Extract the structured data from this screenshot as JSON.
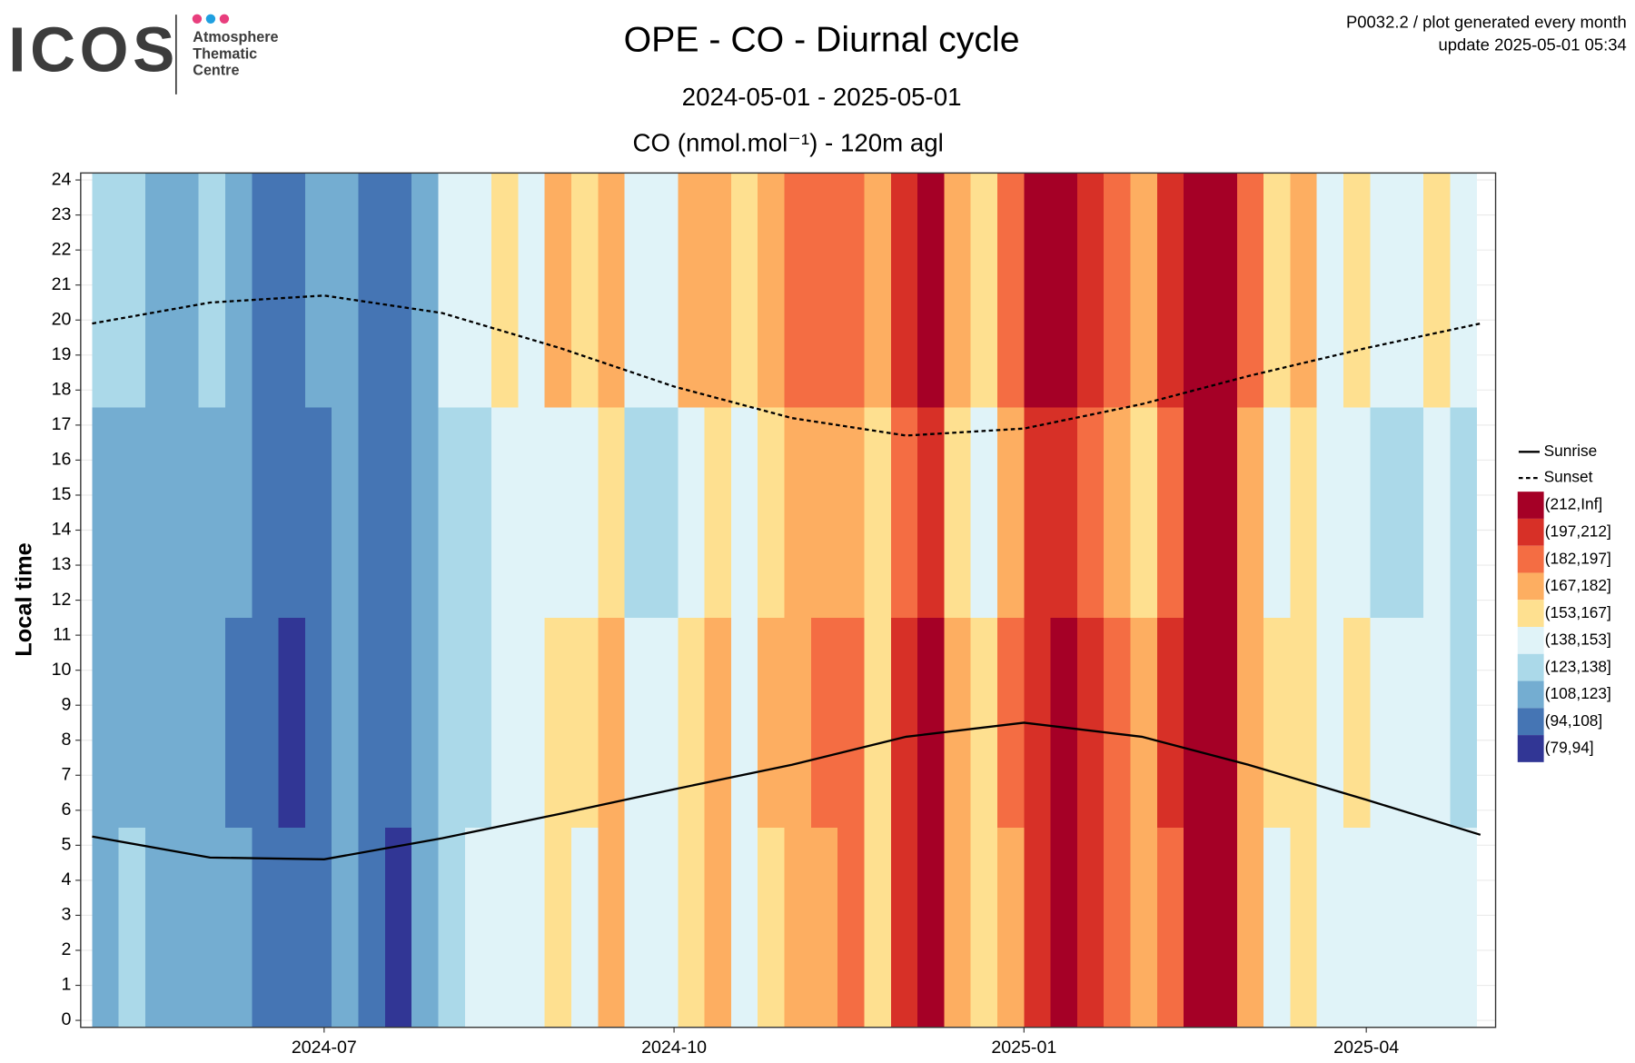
{
  "chart_data": {
    "type": "heatmap",
    "logo_text": "ICOS",
    "logo_subtitle": [
      "Atmosphere",
      "Thematic",
      "Centre"
    ],
    "header_right": [
      "P0032.2 / plot generated every month",
      "update  2025-05-01 05:34"
    ],
    "title": "OPE - CO - Diurnal cycle",
    "subtitle": "2024-05-01 - 2025-05-01",
    "variable_label": "CO (nmol.mol⁻¹) - 120m agl",
    "ylabel": "Local time",
    "xlim": [
      "2024-04-28",
      "2025-05-05"
    ],
    "xticks": [
      {
        "value": "2024-07-01",
        "label": "2024-07"
      },
      {
        "value": "2024-10-01",
        "label": "2024-10"
      },
      {
        "value": "2025-01-01",
        "label": "2025-01"
      },
      {
        "value": "2025-04-01",
        "label": "2025-04"
      }
    ],
    "ylim": [
      -0.2,
      24.2
    ],
    "yticks": [
      0,
      1,
      2,
      3,
      4,
      5,
      6,
      7,
      8,
      9,
      10,
      11,
      12,
      13,
      14,
      15,
      16,
      17,
      18,
      19,
      20,
      21,
      22,
      23,
      24
    ],
    "grid": true,
    "legend": [
      {
        "label": "(212,Inf]",
        "min": 212,
        "color": "#a50026"
      },
      {
        "label": "(197,212]",
        "min": 197,
        "color": "#d73027"
      },
      {
        "label": "(182,197]",
        "min": 182,
        "color": "#f46d43"
      },
      {
        "label": "(167,182]",
        "min": 167,
        "color": "#fdae61"
      },
      {
        "label": "(153,167]",
        "min": 153,
        "color": "#fee090"
      },
      {
        "label": "(138,153]",
        "min": 138,
        "color": "#e0f3f8"
      },
      {
        "label": "(123,138]",
        "min": 123,
        "color": "#abd9e9"
      },
      {
        "label": "(108,123]",
        "min": 108,
        "color": "#74add1"
      },
      {
        "label": "(94,108]",
        "min": 94,
        "color": "#4575b4"
      },
      {
        "label": "(79,94]",
        "min": 79,
        "color": "#313695"
      }
    ],
    "heatmap": {
      "x": [
        "2024-05-01",
        "2024-05-08",
        "2024-05-15",
        "2024-05-22",
        "2024-05-29",
        "2024-06-05",
        "2024-06-12",
        "2024-06-19",
        "2024-06-26",
        "2024-07-03",
        "2024-07-10",
        "2024-07-17",
        "2024-07-24",
        "2024-07-31",
        "2024-08-07",
        "2024-08-14",
        "2024-08-21",
        "2024-08-28",
        "2024-09-04",
        "2024-09-11",
        "2024-09-18",
        "2024-09-25",
        "2024-10-02",
        "2024-10-09",
        "2024-10-16",
        "2024-10-23",
        "2024-10-30",
        "2024-11-06",
        "2024-11-13",
        "2024-11-20",
        "2024-11-27",
        "2024-12-04",
        "2024-12-11",
        "2024-12-18",
        "2024-12-25",
        "2025-01-01",
        "2025-01-08",
        "2025-01-15",
        "2025-01-22",
        "2025-01-29",
        "2025-02-05",
        "2025-02-12",
        "2025-02-19",
        "2025-02-26",
        "2025-03-05",
        "2025-03-12",
        "2025-03-19",
        "2025-03-26",
        "2025-04-02",
        "2025-04-09",
        "2025-04-16",
        "2025-04-23"
      ],
      "y": [
        0,
        6,
        12,
        18
      ],
      "values": [
        [
          120,
          118,
          115,
          125
        ],
        [
          125,
          120,
          118,
          128
        ],
        [
          115,
          112,
          110,
          118
        ],
        [
          118,
          115,
          112,
          120
        ],
        [
          122,
          118,
          115,
          125
        ],
        [
          110,
          108,
          112,
          115
        ],
        [
          100,
          98,
          104,
          108
        ],
        [
          96,
          94,
          100,
          102
        ],
        [
          105,
          102,
          106,
          110
        ],
        [
          115,
          112,
          118,
          120
        ],
        [
          100,
          98,
          102,
          104
        ],
        [
          92,
          95,
          98,
          100
        ],
        [
          112,
          110,
          115,
          118
        ],
        [
          135,
          130,
          128,
          140
        ],
        [
          140,
          135,
          130,
          145
        ],
        [
          150,
          145,
          140,
          155
        ],
        [
          145,
          150,
          140,
          150
        ],
        [
          165,
          160,
          150,
          170
        ],
        [
          150,
          155,
          140,
          158
        ],
        [
          175,
          170,
          160,
          178
        ],
        [
          145,
          140,
          135,
          150
        ],
        [
          140,
          145,
          138,
          148
        ],
        [
          160,
          165,
          150,
          168
        ],
        [
          170,
          175,
          160,
          178
        ],
        [
          150,
          145,
          140,
          155
        ],
        [
          165,
          170,
          155,
          172
        ],
        [
          178,
          180,
          170,
          185
        ],
        [
          180,
          185,
          175,
          190
        ],
        [
          185,
          190,
          180,
          195
        ],
        [
          160,
          165,
          155,
          168
        ],
        [
          200,
          205,
          195,
          210
        ],
        [
          215,
          220,
          210,
          225
        ],
        [
          170,
          175,
          165,
          180
        ],
        [
          160,
          158,
          150,
          165
        ],
        [
          180,
          185,
          175,
          190
        ],
        [
          205,
          210,
          200,
          215
        ],
        [
          215,
          220,
          212,
          225
        ],
        [
          205,
          200,
          195,
          210
        ],
        [
          185,
          190,
          180,
          195
        ],
        [
          170,
          175,
          165,
          178
        ],
        [
          195,
          200,
          190,
          205
        ],
        [
          215,
          220,
          213,
          225
        ],
        [
          220,
          225,
          215,
          230
        ],
        [
          175,
          180,
          170,
          185
        ],
        [
          150,
          155,
          145,
          158
        ],
        [
          160,
          165,
          155,
          168
        ],
        [
          145,
          150,
          140,
          152
        ],
        [
          150,
          155,
          145,
          158
        ],
        [
          145,
          140,
          135,
          150
        ],
        [
          140,
          145,
          138,
          148
        ],
        [
          150,
          148,
          140,
          155
        ],
        [
          140,
          138,
          135,
          145
        ]
      ]
    },
    "x": [
      "2024-05-01",
      "2024-06-01",
      "2024-07-01",
      "2024-08-01",
      "2024-09-01",
      "2024-10-01",
      "2024-11-01",
      "2024-12-01",
      "2025-01-01",
      "2025-02-01",
      "2025-03-01",
      "2025-04-01",
      "2025-05-01"
    ],
    "series": [
      {
        "name": "Sunrise",
        "color": "#000000",
        "dash": false,
        "values": [
          5.25,
          4.65,
          4.6,
          5.2,
          5.9,
          6.6,
          7.3,
          8.1,
          8.5,
          8.1,
          7.3,
          6.3,
          5.3
        ]
      },
      {
        "name": "Sunset",
        "color": "#000000",
        "dash": true,
        "values": [
          19.9,
          20.5,
          20.7,
          20.2,
          19.2,
          18.1,
          17.2,
          16.7,
          16.9,
          17.6,
          18.4,
          19.2,
          19.9
        ]
      }
    ]
  }
}
